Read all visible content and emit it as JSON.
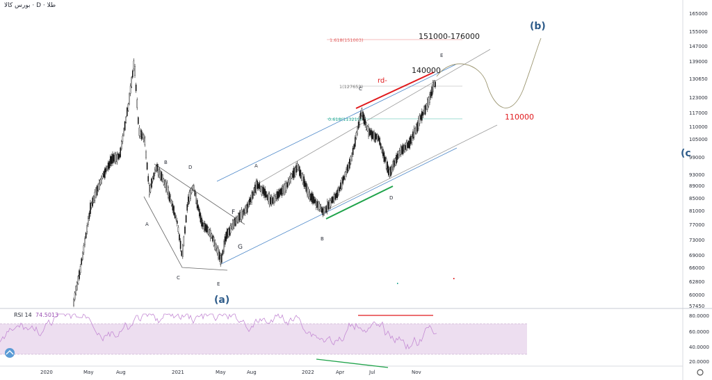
{
  "header": {
    "title": "بورس کالا · D · طلا"
  },
  "rsi": {
    "label": "RSI 14",
    "value": "74.5013",
    "levels": [
      "80.0000",
      "60.0000",
      "40.0000",
      "20.0000"
    ]
  },
  "price_axis": [
    "165000",
    "155000",
    "147000",
    "139000",
    "130650",
    "123000",
    "117000",
    "110000",
    "105000",
    "99000",
    "93000",
    "89000",
    "85000",
    "81000",
    "77000",
    "73000",
    "69000",
    "66000",
    "62800",
    "60000",
    "57450"
  ],
  "time_axis": [
    "2020",
    "May",
    "Aug",
    "2021",
    "May",
    "Aug",
    "2022",
    "Apr",
    "Jul",
    "Nov"
  ],
  "annotations": {
    "fib_1618": "1.618(151003)",
    "fib_1": "1(127653)",
    "fib_0618": "0.618(113219)",
    "target_range": "151000-176000",
    "target_140000": "140000",
    "target_110000": "110000",
    "rd": "rd-",
    "wave_a": "(a)",
    "wave_b": "(b)",
    "wave_c_partial": "(c",
    "letters": {
      "A1": "A",
      "B1": "B",
      "C1": "C",
      "D1": "D",
      "E1": "E",
      "F1": "F",
      "G1": "G",
      "A2": "A",
      "B2": "B",
      "C2": "C",
      "D2": "D",
      "E2": "E"
    }
  },
  "colors": {
    "blue_channel": "#4a86c8",
    "red_line": "#e0191c",
    "green_line": "#1fa34a",
    "rsi_band": "#e8d6ec",
    "rsi_line": "#c48ad4",
    "fib_red": "#f2a6a6",
    "fib_teal": "#7fd1c4"
  },
  "chart_data": {
    "type": "candlestick",
    "ylim": [
      57450,
      165000
    ],
    "x_labels": [
      "2020",
      "May",
      "Aug",
      "2021",
      "May",
      "Aug",
      "2022",
      "Apr",
      "Jul",
      "Nov"
    ],
    "pivots": [
      {
        "label": "peak",
        "date": "2020-09",
        "price": 140000
      },
      {
        "label": "A",
        "date": "2020-11",
        "price": 83000
      },
      {
        "label": "B",
        "date": "2020-12",
        "price": 96000
      },
      {
        "label": "C",
        "date": "2021-02",
        "price": 66000
      },
      {
        "label": "D",
        "date": "2021-03",
        "price": 91000
      },
      {
        "label": "E",
        "date": "2021-05",
        "price": 65500
      },
      {
        "label": "A",
        "date": "2021-09",
        "price": 92000
      },
      {
        "label": "B",
        "date": "2022-02",
        "price": 79500
      },
      {
        "label": "C",
        "date": "2022-06",
        "price": 120000
      },
      {
        "label": "D",
        "date": "2022-07",
        "price": 89000
      },
      {
        "label": "E",
        "date": "2022-12",
        "price": 129000
      }
    ],
    "fib_levels": [
      {
        "ratio": 1.618,
        "price": 151003
      },
      {
        "ratio": 1,
        "price": 127653
      },
      {
        "ratio": 0.618,
        "price": 113219
      }
    ],
    "rsi": {
      "period": 14,
      "last": 74.5013,
      "ylim": [
        20,
        80
      ]
    }
  }
}
